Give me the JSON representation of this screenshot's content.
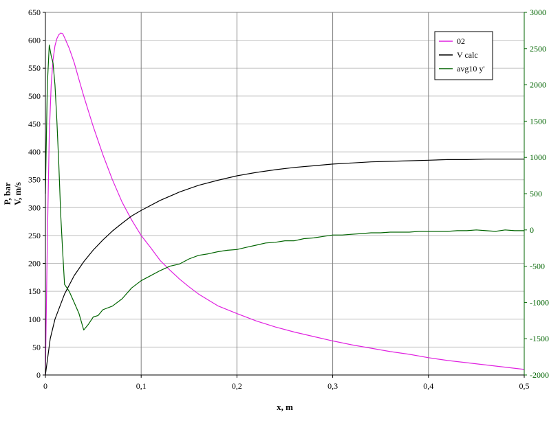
{
  "chart_data": {
    "type": "line",
    "xlabel": "x, m",
    "ylabel_left": [
      "P, bar",
      "V, m/s"
    ],
    "ylabel_right": "",
    "xlim": [
      0,
      0.5
    ],
    "ylim_left": [
      0,
      650
    ],
    "ylim_right": [
      -2000,
      3000
    ],
    "x_ticks": [
      0,
      0.1,
      0.2,
      0.3,
      0.4,
      0.5
    ],
    "x_tick_labels": [
      "0",
      "0,1",
      "0,2",
      "0,3",
      "0,4",
      "0,5"
    ],
    "y_left_ticks": [
      0,
      50,
      100,
      150,
      200,
      250,
      300,
      350,
      400,
      450,
      500,
      550,
      600,
      650
    ],
    "y_right_ticks": [
      -2000,
      -1500,
      -1000,
      -500,
      0,
      500,
      1000,
      1500,
      2000,
      2500,
      3000
    ],
    "grid": true,
    "legend_position": "top-right",
    "colors": {
      "right_axis": "#006400"
    },
    "series": [
      {
        "name": "02",
        "axis": "left",
        "color": "#e020e0",
        "x": [
          0,
          0.002,
          0.004,
          0.006,
          0.008,
          0.01,
          0.012,
          0.014,
          0.016,
          0.018,
          0.02,
          0.025,
          0.03,
          0.035,
          0.04,
          0.05,
          0.06,
          0.07,
          0.08,
          0.09,
          0.1,
          0.11,
          0.12,
          0.13,
          0.14,
          0.15,
          0.16,
          0.18,
          0.2,
          0.22,
          0.24,
          0.26,
          0.28,
          0.3,
          0.32,
          0.34,
          0.36,
          0.38,
          0.4,
          0.42,
          0.44,
          0.46,
          0.48,
          0.5
        ],
        "y": [
          0,
          240,
          430,
          520,
          565,
          590,
          603,
          610,
          613,
          612,
          605,
          585,
          560,
          530,
          500,
          445,
          395,
          350,
          310,
          278,
          250,
          228,
          205,
          188,
          172,
          158,
          145,
          124,
          110,
          97,
          86,
          77,
          69,
          61,
          54,
          48,
          42,
          37,
          31,
          26,
          22,
          18,
          14,
          10
        ]
      },
      {
        "name": "V calc",
        "axis": "left",
        "color": "#000000",
        "x": [
          0,
          0.005,
          0.01,
          0.02,
          0.03,
          0.04,
          0.05,
          0.06,
          0.07,
          0.08,
          0.09,
          0.1,
          0.12,
          0.14,
          0.16,
          0.18,
          0.2,
          0.22,
          0.24,
          0.26,
          0.28,
          0.3,
          0.32,
          0.34,
          0.36,
          0.38,
          0.4,
          0.42,
          0.44,
          0.46,
          0.48,
          0.5
        ],
        "y": [
          0,
          65,
          100,
          145,
          178,
          203,
          224,
          242,
          258,
          272,
          285,
          295,
          313,
          328,
          340,
          349,
          357,
          363,
          368,
          372,
          375,
          378,
          380,
          382,
          383,
          384,
          385,
          386,
          386,
          387,
          387,
          387
        ]
      },
      {
        "name": "avg10 y'",
        "axis": "right",
        "color": "#006400",
        "x": [
          0,
          0.002,
          0.004,
          0.006,
          0.008,
          0.01,
          0.012,
          0.014,
          0.016,
          0.018,
          0.02,
          0.025,
          0.03,
          0.035,
          0.04,
          0.045,
          0.05,
          0.055,
          0.06,
          0.07,
          0.08,
          0.09,
          0.1,
          0.11,
          0.12,
          0.13,
          0.14,
          0.15,
          0.16,
          0.17,
          0.18,
          0.19,
          0.2,
          0.21,
          0.22,
          0.23,
          0.24,
          0.25,
          0.26,
          0.27,
          0.28,
          0.29,
          0.3,
          0.31,
          0.32,
          0.33,
          0.34,
          0.35,
          0.36,
          0.37,
          0.38,
          0.39,
          0.4,
          0.41,
          0.42,
          0.43,
          0.44,
          0.45,
          0.46,
          0.47,
          0.48,
          0.49,
          0.5
        ],
        "y": [
          500,
          2000,
          2550,
          2400,
          2300,
          2000,
          1500,
          900,
          200,
          -300,
          -750,
          -850,
          -1000,
          -1150,
          -1380,
          -1300,
          -1200,
          -1180,
          -1100,
          -1050,
          -950,
          -800,
          -700,
          -630,
          -560,
          -500,
          -470,
          -400,
          -350,
          -330,
          -300,
          -280,
          -270,
          -240,
          -210,
          -180,
          -170,
          -150,
          -150,
          -120,
          -110,
          -90,
          -70,
          -70,
          -60,
          -50,
          -40,
          -40,
          -30,
          -30,
          -30,
          -20,
          -20,
          -20,
          -20,
          -10,
          -10,
          0,
          -10,
          -20,
          0,
          -10,
          -10
        ]
      }
    ]
  }
}
